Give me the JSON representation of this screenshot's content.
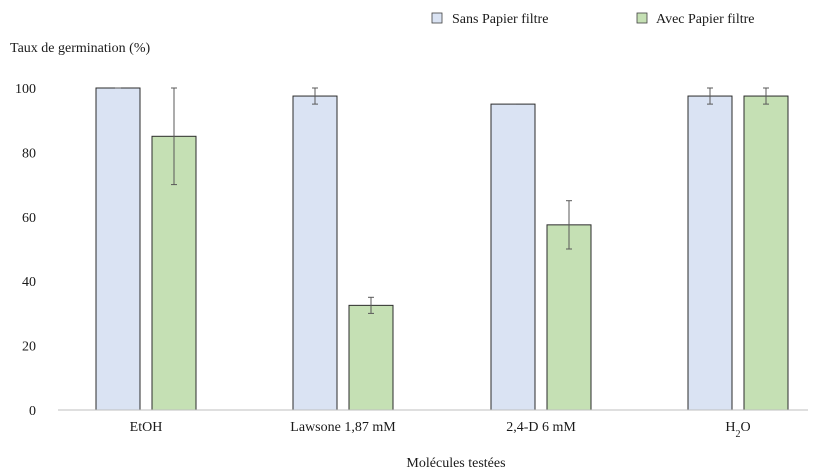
{
  "chart_data": {
    "type": "bar",
    "ylabel": "Taux de germination (%)",
    "xlabel": "Molécules testées",
    "categories": [
      "EtOH",
      "Lawsone 1,87 mM",
      "2,4-D 6 mM",
      "H2O"
    ],
    "ylim": [
      0,
      100
    ],
    "yticks": [
      0,
      20,
      40,
      60,
      80,
      100
    ],
    "grid": false,
    "legend_position": "top-right",
    "series": [
      {
        "name": "Sans Papier filtre",
        "color": "#dae3f3",
        "values": [
          100,
          97.5,
          95,
          97.5
        ],
        "errors": [
          0,
          2.5,
          0,
          2.5
        ]
      },
      {
        "name": "Avec Papier filtre",
        "color": "#c5e0b4",
        "values": [
          85,
          32.5,
          57.5,
          97.5
        ],
        "errors": [
          15,
          2.5,
          7.5,
          2.5
        ]
      }
    ]
  }
}
